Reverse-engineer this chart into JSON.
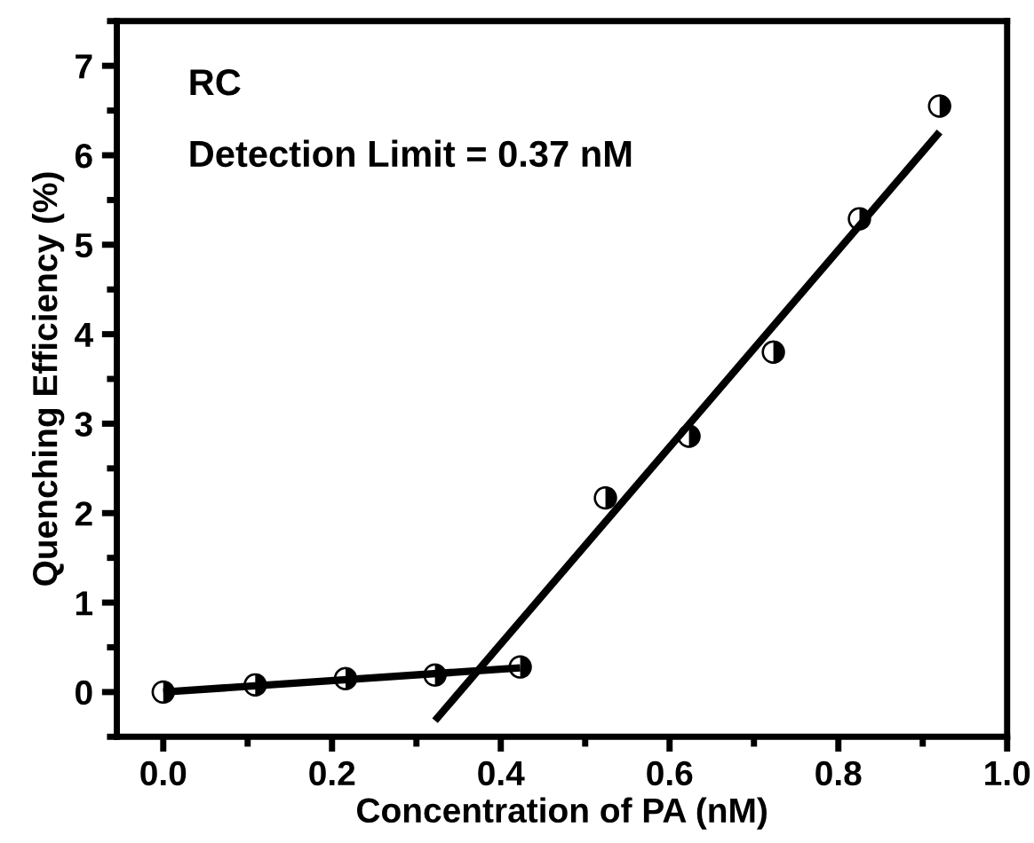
{
  "chart_data": {
    "type": "scatter",
    "xlabel": "Concentration of PA (nM)",
    "ylabel": "Quenching Efficiency (%)",
    "annotations": [
      "RC",
      "Detection Limit = 0.37 nM"
    ],
    "series": [
      {
        "color": "#000000",
        "marker": "circle",
        "x": [
          0,
          0.109,
          0.216,
          0.322,
          0.423,
          0.524,
          0.623,
          0.723,
          0.825,
          0.92
        ],
        "values": [
          0,
          0.08,
          0.15,
          0.19,
          0.28,
          2.17,
          2.86,
          3.8,
          5.29,
          6.55
        ]
      },
      {
        "type": "line",
        "color": "#000000",
        "x": [
          0,
          0.423
        ],
        "values": [
          0,
          0.27
        ]
      },
      {
        "type": "line",
        "color": "#000000",
        "x": [
          0.322,
          0.92
        ],
        "values": [
          -0.32,
          6.26
        ]
      }
    ],
    "xlim": [
      -0.055,
      1.0
    ],
    "ylim": [
      -0.5,
      7.5
    ],
    "xticks": [
      {
        "value": 0,
        "label": "0.0"
      },
      0.2,
      0.4,
      0.6,
      0.8,
      {
        "value": 1,
        "label": "1.0"
      }
    ],
    "yticks": [
      0,
      1,
      2,
      3,
      4,
      5,
      6,
      7
    ],
    "grid": false,
    "legend": false
  }
}
